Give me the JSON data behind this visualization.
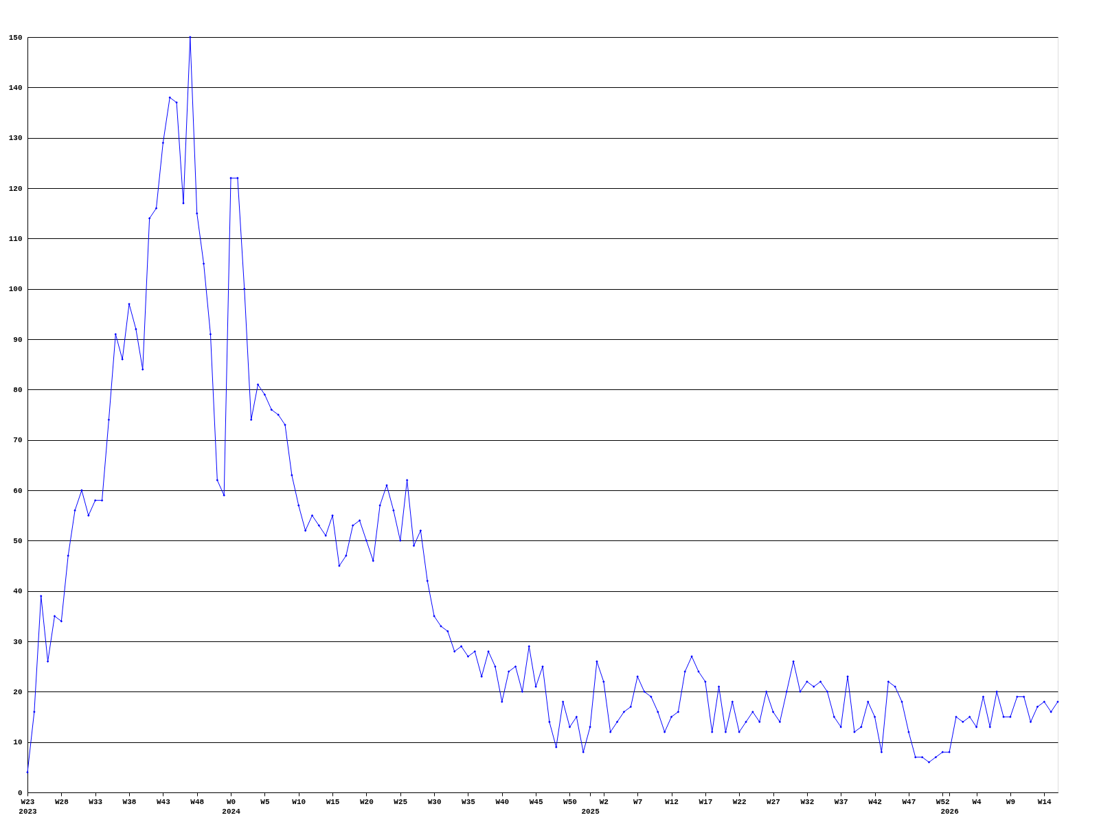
{
  "chart_data": {
    "type": "line",
    "categories": [
      "W23\n2023",
      null,
      null,
      null,
      null,
      "W28",
      null,
      null,
      null,
      null,
      "W33",
      null,
      null,
      null,
      null,
      "W38",
      null,
      null,
      null,
      null,
      "W43",
      null,
      null,
      null,
      null,
      "W48",
      null,
      null,
      null,
      null,
      "W0\n2024",
      null,
      null,
      null,
      null,
      "W5",
      null,
      null,
      null,
      null,
      "W10",
      null,
      null,
      null,
      null,
      "W15",
      null,
      null,
      null,
      null,
      "W20",
      null,
      null,
      null,
      null,
      "W25",
      null,
      null,
      null,
      null,
      "W30",
      null,
      null,
      null,
      null,
      "W35",
      null,
      null,
      null,
      null,
      "W40",
      null,
      null,
      null,
      null,
      "W45",
      null,
      null,
      null,
      null,
      "W50",
      null,
      null,
      "\n2025",
      null,
      "W2",
      null,
      null,
      null,
      null,
      "W7",
      null,
      null,
      null,
      null,
      "W12",
      null,
      null,
      null,
      null,
      "W17",
      null,
      null,
      null,
      null,
      "W22",
      null,
      null,
      null,
      null,
      "W27",
      null,
      null,
      null,
      null,
      "W32",
      null,
      null,
      null,
      null,
      "W37",
      null,
      null,
      null,
      null,
      "W42",
      null,
      null,
      null,
      null,
      "W47",
      null,
      null,
      null,
      null,
      "W52",
      "\n2026",
      null,
      null,
      null,
      "W4",
      null,
      null,
      null,
      null,
      "W9",
      null,
      null,
      null,
      null,
      "W14",
      null,
      null
    ],
    "series": [
      {
        "color": "#0000ff",
        "values": [
          4,
          16,
          39,
          26,
          35,
          34,
          47,
          56,
          60,
          55,
          58,
          58,
          74,
          91,
          86,
          97,
          92,
          84,
          114,
          116,
          129,
          138,
          137,
          117,
          150,
          115,
          105,
          91,
          62,
          59,
          122,
          122,
          100,
          74,
          81,
          79,
          76,
          75,
          73,
          63,
          57,
          52,
          55,
          53,
          51,
          55,
          45,
          47,
          53,
          54,
          50,
          46,
          57,
          61,
          56,
          50,
          62,
          49,
          52,
          42,
          35,
          33,
          32,
          28,
          29,
          27,
          28,
          23,
          28,
          25,
          18,
          24,
          25,
          20,
          29,
          21,
          25,
          14,
          9,
          18,
          13,
          15,
          8,
          13,
          26,
          22,
          12,
          14,
          16,
          17,
          23,
          20,
          19,
          16,
          12,
          15,
          16,
          24,
          27,
          24,
          22,
          12,
          21,
          12,
          18,
          12,
          14,
          16,
          14,
          20,
          16,
          14,
          20,
          26,
          20,
          22,
          21,
          22,
          20,
          15,
          13,
          23,
          12,
          13,
          18,
          15,
          8,
          22,
          21,
          18,
          12,
          7,
          7,
          6,
          7,
          8,
          8,
          15,
          14,
          15,
          13,
          19,
          13,
          20,
          15,
          15,
          19,
          19,
          14,
          17,
          18,
          16,
          18
        ]
      }
    ],
    "ylim": [
      0,
      150
    ],
    "yticks": [
      0,
      10,
      20,
      30,
      40,
      50,
      60,
      70,
      80,
      90,
      100,
      110,
      120,
      130,
      140,
      150
    ],
    "grid": "y",
    "marker": "diamond",
    "line_style": "solid"
  }
}
